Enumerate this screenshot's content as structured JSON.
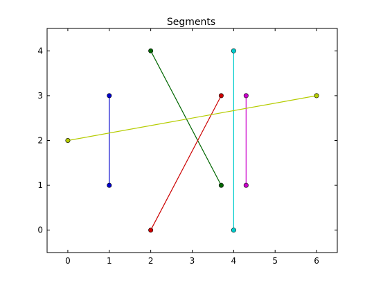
{
  "chart_data": {
    "type": "line",
    "title": "Segments",
    "xlabel": "",
    "ylabel": "",
    "xlim": [
      -0.5,
      6.5
    ],
    "ylim": [
      -0.5,
      4.5
    ],
    "xticks": [
      0,
      1,
      2,
      3,
      4,
      5,
      6
    ],
    "yticks": [
      0,
      1,
      2,
      3,
      4
    ],
    "grid": false,
    "series": [
      {
        "x": [
          1,
          1
        ],
        "y": [
          1,
          3
        ],
        "color": "#0000cc"
      },
      {
        "x": [
          2,
          3.7
        ],
        "y": [
          4,
          1
        ],
        "color": "#006600"
      },
      {
        "x": [
          2,
          3.7
        ],
        "y": [
          0,
          3
        ],
        "color": "#cc0000"
      },
      {
        "x": [
          4,
          4
        ],
        "y": [
          0,
          4
        ],
        "color": "#00cccc"
      },
      {
        "x": [
          4.3,
          4.3
        ],
        "y": [
          1,
          3
        ],
        "color": "#cc00cc"
      },
      {
        "x": [
          0,
          6
        ],
        "y": [
          2,
          3
        ],
        "color": "#b5cc00"
      }
    ]
  }
}
